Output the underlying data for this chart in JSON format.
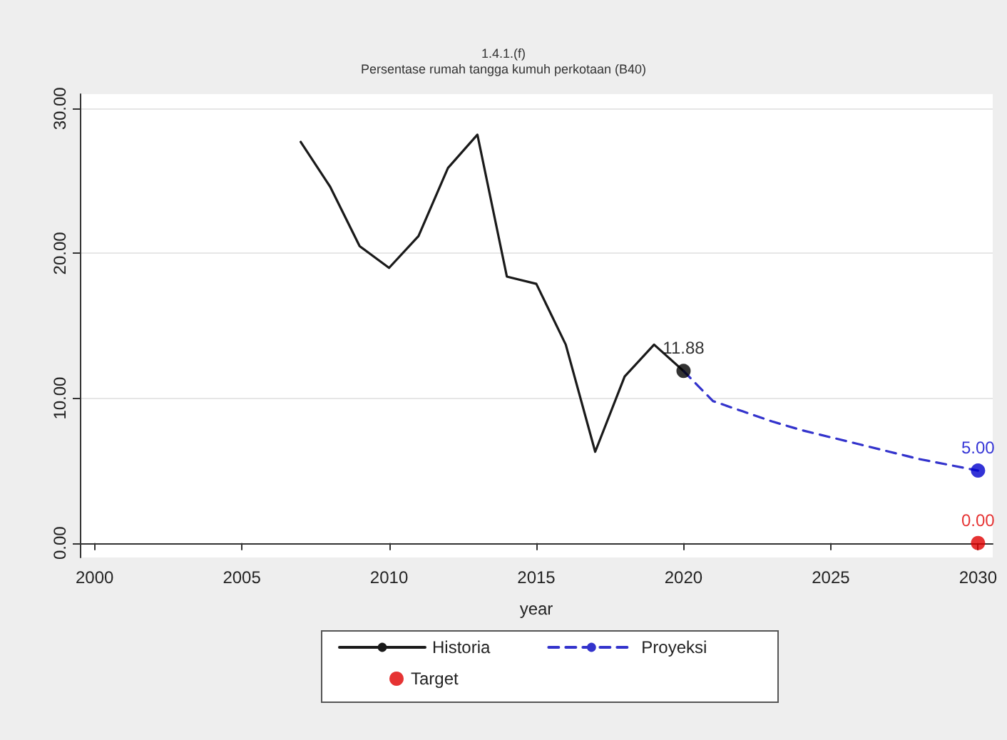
{
  "chart_data": {
    "type": "line",
    "title": "1.4.1.(f)",
    "subtitle": "Persentase rumah tangga kumuh perkotaan (B40)",
    "xlabel": "year",
    "xlim": [
      1999.5,
      2030.5
    ],
    "xticks": [
      2000,
      2005,
      2010,
      2015,
      2020,
      2025,
      2030
    ],
    "ylim": [
      -1,
      31
    ],
    "yticks": [
      {
        "value": 0,
        "label": "0.00"
      },
      {
        "value": 10,
        "label": "10.00"
      },
      {
        "value": 20,
        "label": "20.00"
      },
      {
        "value": 30,
        "label": "30.00"
      }
    ],
    "grid": "y",
    "legend": "bottom",
    "series": [
      {
        "name": "Historia",
        "type": "line",
        "color": "#1a1a1a",
        "line_style": "solid",
        "marker": "none",
        "x": [
          2007,
          2008,
          2009,
          2010,
          2011,
          2012,
          2013,
          2014,
          2015,
          2016,
          2017,
          2018,
          2019,
          2020
        ],
        "values": [
          27.7,
          24.6,
          20.5,
          19.0,
          21.2,
          25.9,
          28.2,
          18.4,
          17.9,
          13.7,
          6.3,
          11.5,
          13.7,
          11.88
        ]
      },
      {
        "name": "Proyeksi",
        "type": "line",
        "color": "#3333cc",
        "line_style": "dashed",
        "marker": "none",
        "x": [
          2020,
          2021,
          2022,
          2023,
          2024,
          2025,
          2026,
          2027,
          2028,
          2029,
          2030
        ],
        "values": [
          11.88,
          9.8,
          9.1,
          8.4,
          7.8,
          7.3,
          6.8,
          6.3,
          5.8,
          5.4,
          5.0
        ]
      },
      {
        "type": "scatter",
        "color": "#000000",
        "marker": "circle",
        "x": [
          2020
        ],
        "values": [
          11.88
        ],
        "value_labels": [
          "11.88"
        ]
      },
      {
        "type": "scatter",
        "color": "#0000cc",
        "marker": "circle",
        "x": [
          2030
        ],
        "values": [
          5.0
        ],
        "value_labels": [
          "5.00"
        ]
      },
      {
        "name": "Target",
        "type": "scatter",
        "color": "#e00000",
        "marker": "circle",
        "x": [
          2030
        ],
        "values": [
          0
        ],
        "value_labels": [
          "0.00"
        ]
      }
    ]
  }
}
